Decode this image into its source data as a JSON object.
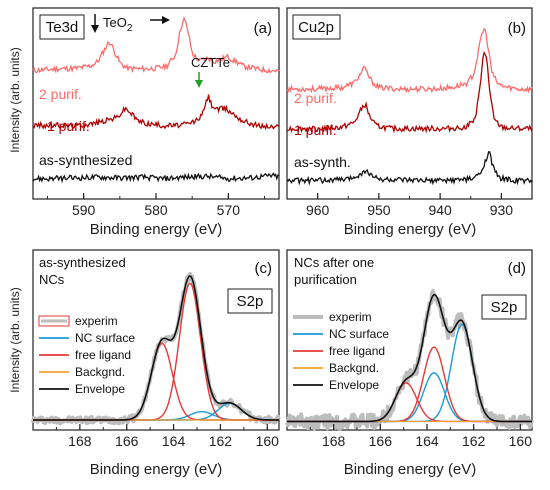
{
  "chart_data": [
    {
      "id": "a",
      "type": "line",
      "panel_tag": "(a)",
      "element_label": "Te3d",
      "xlabel": "Binding energy (eV)",
      "ylabel": "Intensity (arb. units)",
      "xlim": [
        597,
        563
      ],
      "xticks": [
        590,
        580,
        570
      ],
      "annotations": {
        "teo2": "TeO",
        "teo2_sub": "2",
        "czzte": "CZTTe",
        "teo2_peaks_eV": [
          586.3,
          576.0
        ],
        "czzte_peak_eV": 572.8
      },
      "series": [
        {
          "name": "2 purif.",
          "color": "#ff6b6b",
          "x": [
            597,
            594,
            591,
            589,
            588,
            587.4,
            586.7,
            586.3,
            585.8,
            585,
            584,
            582,
            580,
            578.5,
            577.3,
            576.6,
            576.1,
            575.6,
            575,
            574,
            573.5,
            572.8,
            572,
            571,
            570.2,
            569,
            568,
            566,
            564,
            563
          ],
          "y": [
            0.82,
            0.83,
            0.835,
            0.85,
            0.88,
            0.93,
            0.99,
            1.0,
            0.95,
            0.87,
            0.835,
            0.83,
            0.835,
            0.85,
            0.92,
            1.09,
            1.15,
            1.08,
            0.93,
            0.88,
            0.89,
            0.9,
            0.88,
            0.89,
            0.91,
            0.88,
            0.85,
            0.83,
            0.82,
            0.82
          ]
        },
        {
          "name": "1 purif.",
          "color": "#b00000",
          "x": [
            597,
            594,
            591,
            589,
            588,
            587,
            586.3,
            585.5,
            585,
            584.2,
            583.5,
            582.5,
            581,
            579,
            577,
            575.5,
            574.5,
            574,
            573.5,
            572.8,
            572.3,
            571.5,
            570.5,
            569.5,
            568,
            566,
            564,
            563
          ],
          "y": [
            0.47,
            0.47,
            0.47,
            0.48,
            0.49,
            0.5,
            0.51,
            0.52,
            0.54,
            0.58,
            0.55,
            0.5,
            0.48,
            0.47,
            0.47,
            0.48,
            0.5,
            0.52,
            0.55,
            0.66,
            0.6,
            0.57,
            0.58,
            0.55,
            0.5,
            0.47,
            0.46,
            0.46
          ]
        },
        {
          "name": "as-synthesized",
          "color": "#111111",
          "x": [
            597,
            594,
            591,
            588,
            585,
            582,
            579,
            576,
            573,
            570,
            567,
            564,
            563
          ],
          "y": [
            0.13,
            0.13,
            0.135,
            0.14,
            0.135,
            0.14,
            0.13,
            0.14,
            0.145,
            0.13,
            0.135,
            0.15,
            0.14
          ]
        }
      ]
    },
    {
      "id": "b",
      "type": "line",
      "panel_tag": "(b)",
      "element_label": "Cu2p",
      "xlabel": "Binding energy (eV)",
      "xlim": [
        965,
        925
      ],
      "xticks": [
        960,
        950,
        940,
        930
      ],
      "series": [
        {
          "name": "2 purif.",
          "color": "#ff6b6b",
          "x": [
            965,
            960,
            956,
            954,
            953,
            952.5,
            952,
            951.2,
            950,
            947,
            944,
            941,
            938,
            935.5,
            934.5,
            933.8,
            933.2,
            932.7,
            932.2,
            931.5,
            930.5,
            929,
            927,
            925
          ],
          "y": [
            0.72,
            0.72,
            0.73,
            0.76,
            0.82,
            0.86,
            0.83,
            0.77,
            0.73,
            0.72,
            0.72,
            0.72,
            0.73,
            0.76,
            0.82,
            0.95,
            1.08,
            1.12,
            1.0,
            0.82,
            0.75,
            0.73,
            0.72,
            0.72
          ]
        },
        {
          "name": "1 purif.",
          "color": "#b00000",
          "x": [
            965,
            960,
            956,
            954,
            952.7,
            952.2,
            951.5,
            950.5,
            948,
            945,
            942,
            939,
            936,
            934.2,
            933.4,
            932.9,
            932.4,
            931.9,
            931.2,
            930,
            928,
            925
          ],
          "y": [
            0.46,
            0.46,
            0.47,
            0.5,
            0.6,
            0.62,
            0.54,
            0.48,
            0.46,
            0.46,
            0.46,
            0.46,
            0.47,
            0.52,
            0.78,
            0.95,
            0.93,
            0.7,
            0.52,
            0.47,
            0.46,
            0.46
          ]
        },
        {
          "name": "as-synth.",
          "color": "#111111",
          "x": [
            965,
            960,
            955,
            952.5,
            952,
            951.5,
            950,
            945,
            940,
            935,
            933.5,
            932.5,
            932,
            931.5,
            930.5,
            928,
            925
          ],
          "y": [
            0.12,
            0.12,
            0.13,
            0.17,
            0.2,
            0.16,
            0.13,
            0.12,
            0.12,
            0.13,
            0.16,
            0.26,
            0.33,
            0.22,
            0.14,
            0.12,
            0.12
          ]
        }
      ]
    },
    {
      "id": "c",
      "type": "line",
      "panel_tag": "(c)",
      "element_label": "S2p",
      "note_lines": [
        "as-synthesized",
        "NCs"
      ],
      "xlabel": "Binding energy (eV)",
      "ylabel": "Intensity (arb. units)",
      "xlim": [
        170,
        159.5
      ],
      "xticks": [
        168,
        166,
        164,
        162,
        160
      ],
      "legend": [
        "experim",
        "NC surface",
        "free ligand",
        "Backgnd.",
        "Envelope"
      ],
      "components": [
        {
          "name": "NC surface",
          "color": "#1a9bd8",
          "peaks": [
            {
              "center": 161.6,
              "height": 0.1,
              "width": 0.5
            },
            {
              "center": 162.8,
              "height": 0.05,
              "width": 0.5
            }
          ]
        },
        {
          "name": "free ligand",
          "color": "#e53935",
          "peaks": [
            {
              "center": 164.5,
              "height": 0.46,
              "width": 0.45
            },
            {
              "center": 163.3,
              "height": 0.82,
              "width": 0.45
            }
          ]
        },
        {
          "name": "Backgnd.",
          "color": "#f0a030",
          "peaks": []
        }
      ],
      "experim": {
        "name": "experim",
        "color": "#bdbdbd",
        "noise": 0.02
      },
      "envelope": {
        "name": "Envelope",
        "color": "#111111"
      }
    },
    {
      "id": "d",
      "type": "line",
      "panel_tag": "(d)",
      "element_label": "S2p",
      "note_lines": [
        "NCs after one",
        "purification"
      ],
      "xlabel": "Binding energy (eV)",
      "xlim": [
        170,
        159.5
      ],
      "xticks": [
        168,
        166,
        164,
        162,
        160
      ],
      "legend": [
        "experim",
        "NC surface",
        "free ligand",
        "Backgnd.",
        "Envelope"
      ],
      "components": [
        {
          "name": "NC surface",
          "color": "#1a9bd8",
          "peaks": [
            {
              "center": 162.5,
              "height": 0.68,
              "width": 0.45
            },
            {
              "center": 163.7,
              "height": 0.34,
              "width": 0.45
            }
          ]
        },
        {
          "name": "free ligand",
          "color": "#e53935",
          "peaks": [
            {
              "center": 163.7,
              "height": 0.52,
              "width": 0.45
            },
            {
              "center": 164.9,
              "height": 0.27,
              "width": 0.45
            }
          ]
        },
        {
          "name": "Backgnd.",
          "color": "#f0a030",
          "peaks": []
        }
      ],
      "experim": {
        "name": "experim",
        "color": "#bdbdbd",
        "noise": 0.05
      },
      "envelope": {
        "name": "Envelope",
        "color": "#111111"
      }
    }
  ]
}
